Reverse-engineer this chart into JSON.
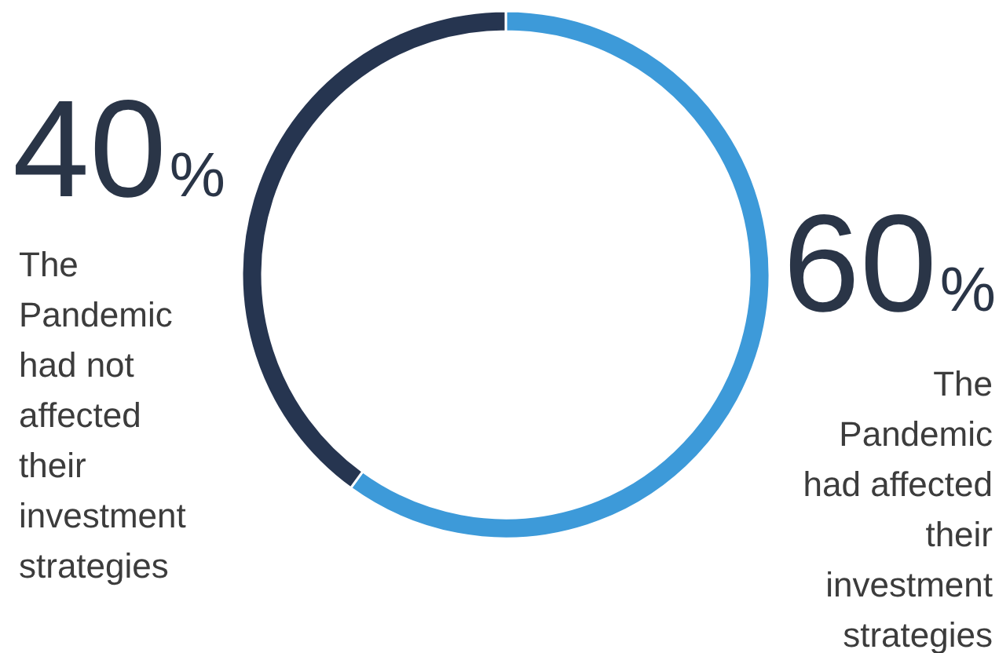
{
  "chart_data": {
    "type": "donut",
    "categories": [
      "The Pandemic had affected their investment strategies",
      "The Pandemic had not affected their investment strategies"
    ],
    "values": [
      60,
      40
    ],
    "colors": [
      "#3d9ad9",
      "#263550"
    ],
    "value_labels": [
      "60%",
      "40%"
    ]
  }
}
